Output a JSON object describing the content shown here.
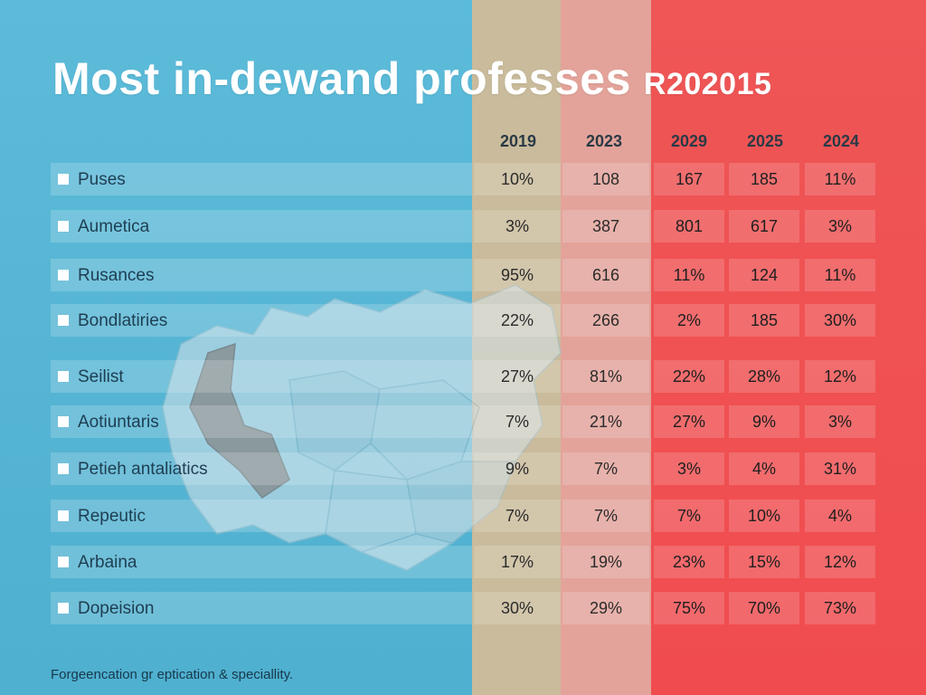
{
  "title": "Most in-dewand professes",
  "title_suffix": "R202015",
  "years": [
    "2019",
    "2023",
    "2029",
    "2025",
    "2024"
  ],
  "rows": [
    {
      "label": "Puses",
      "values": [
        "10%",
        "108",
        "167",
        "185",
        "11%"
      ]
    },
    {
      "label": "Aumetica",
      "values": [
        "3%",
        "387",
        "801",
        "617",
        "3%"
      ]
    },
    {
      "label": "Rusances",
      "values": [
        "95%",
        "616",
        "11%",
        "124",
        "11%"
      ]
    },
    {
      "label": "Bondlatiries",
      "values": [
        "22%",
        "266",
        "2%",
        "185",
        "30%"
      ]
    },
    {
      "label": "Seilist",
      "values": [
        "27%",
        "81%",
        "22%",
        "28%",
        "12%"
      ]
    },
    {
      "label": "Aotiuntaris",
      "values": [
        "7%",
        "21%",
        "27%",
        "9%",
        "3%"
      ]
    },
    {
      "label": "Petieh antaliatics",
      "values": [
        "9%",
        "7%",
        "3%",
        "4%",
        "31%"
      ]
    },
    {
      "label": "Repeutic",
      "values": [
        "7%",
        "7%",
        "7%",
        "10%",
        "4%"
      ]
    },
    {
      "label": "Arbaina",
      "values": [
        "17%",
        "19%",
        "23%",
        "15%",
        "12%"
      ]
    },
    {
      "label": "Dopeision",
      "values": [
        "30%",
        "29%",
        "75%",
        "70%",
        "73%"
      ]
    }
  ],
  "footer": "Forgeencation gr eptication & speciallity.",
  "colors": {
    "blue_band": "#55b6d5",
    "tan_band": "#c9bb9b",
    "pink_band": "#e3a39a",
    "red_band": "#f04c4f",
    "map_highlight": "#b47a66"
  },
  "icons": {
    "row_bullet": "square-bullet-icon",
    "map": "map-illustration"
  }
}
